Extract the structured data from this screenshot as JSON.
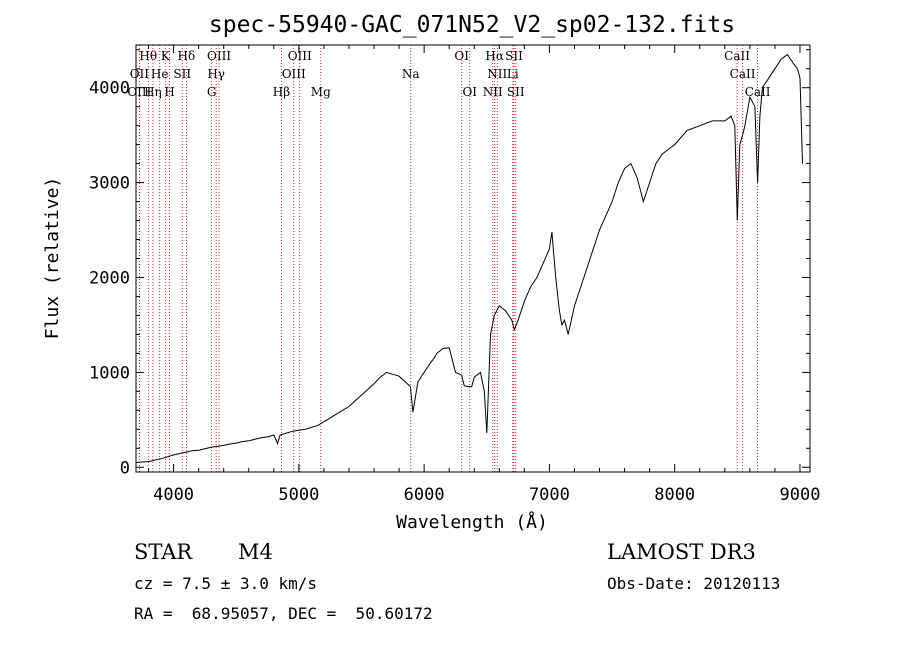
{
  "chart_data": {
    "type": "line",
    "title": "spec-55940-GAC_071N52_V2_sp02-132.fits",
    "xlabel": "Wavelength (Å)",
    "ylabel": "Flux (relative)",
    "xlim": [
      3700,
      9080
    ],
    "ylim": [
      -50,
      4450
    ],
    "xticks": [
      4000,
      5000,
      6000,
      7000,
      8000,
      9000
    ],
    "yticks": [
      0,
      1000,
      2000,
      3000,
      4000
    ],
    "xtick_labels": [
      "4000",
      "5000",
      "6000",
      "7000",
      "8000",
      "9000"
    ],
    "ytick_labels": [
      "0",
      "1000",
      "2000",
      "3000",
      "4000"
    ],
    "series": [
      {
        "name": "spectrum",
        "x": [
          3700,
          3750,
          3800,
          3850,
          3900,
          3950,
          4000,
          4050,
          4100,
          4150,
          4200,
          4250,
          4300,
          4350,
          4400,
          4450,
          4500,
          4550,
          4600,
          4650,
          4700,
          4750,
          4780,
          4800,
          4830,
          4850,
          4900,
          4950,
          5000,
          5050,
          5100,
          5150,
          5200,
          5250,
          5300,
          5350,
          5400,
          5450,
          5500,
          5550,
          5600,
          5650,
          5700,
          5750,
          5800,
          5850,
          5890,
          5910,
          5950,
          6000,
          6050,
          6080,
          6100,
          6150,
          6200,
          6250,
          6300,
          6320,
          6350,
          6380,
          6400,
          6450,
          6480,
          6500,
          6530,
          6560,
          6600,
          6650,
          6700,
          6720,
          6750,
          6800,
          6850,
          6900,
          6950,
          7000,
          7020,
          7050,
          7080,
          7100,
          7120,
          7150,
          7200,
          7300,
          7400,
          7500,
          7550,
          7600,
          7650,
          7700,
          7750,
          7800,
          7850,
          7900,
          7950,
          8000,
          8100,
          8200,
          8300,
          8400,
          8450,
          8480,
          8500,
          8520,
          8542,
          8560,
          8600,
          8640,
          8662,
          8680,
          8700,
          8750,
          8800,
          8850,
          8900,
          8950,
          8980,
          9000,
          9020
        ],
        "values": [
          50,
          55,
          60,
          75,
          90,
          110,
          130,
          145,
          160,
          175,
          180,
          195,
          210,
          220,
          230,
          245,
          255,
          270,
          280,
          295,
          310,
          320,
          330,
          340,
          250,
          340,
          360,
          380,
          390,
          400,
          420,
          440,
          480,
          520,
          560,
          600,
          640,
          700,
          760,
          820,
          880,
          950,
          1000,
          980,
          960,
          900,
          850,
          580,
          900,
          1000,
          1100,
          1150,
          1200,
          1250,
          1260,
          1000,
          970,
          860,
          850,
          850,
          950,
          1000,
          800,
          360,
          1400,
          1600,
          1700,
          1650,
          1550,
          1450,
          1550,
          1750,
          1900,
          2000,
          2150,
          2300,
          2480,
          2000,
          1650,
          1500,
          1550,
          1400,
          1700,
          2100,
          2500,
          2800,
          3000,
          3150,
          3200,
          3050,
          2800,
          3000,
          3200,
          3300,
          3350,
          3400,
          3550,
          3600,
          3650,
          3650,
          3700,
          3600,
          2600,
          3400,
          3500,
          3600,
          3900,
          3800,
          3000,
          3700,
          4000,
          4100,
          4200,
          4300,
          4350,
          4250,
          4200,
          4100,
          3200
        ]
      }
    ],
    "spectral_lines": [
      {
        "label": "Hθ",
        "wave": 3798,
        "row": 0
      },
      {
        "label": "K",
        "wave": 3934,
        "row": 0
      },
      {
        "label": "Hδ",
        "wave": 4102,
        "row": 0
      },
      {
        "label": "OIII",
        "wave": 4363,
        "row": 0
      },
      {
        "label": "OIII",
        "wave": 5007,
        "row": 0
      },
      {
        "label": "OI",
        "wave": 6300,
        "row": 0
      },
      {
        "label": "Hα",
        "wave": 6563,
        "row": 0
      },
      {
        "label": "SII",
        "wave": 6717,
        "row": 0
      },
      {
        "label": "CaII",
        "wave": 8498,
        "row": 0
      },
      {
        "label": "OII",
        "wave": 3727,
        "row": 1
      },
      {
        "label": "He",
        "wave": 3889,
        "row": 1
      },
      {
        "label": "SII",
        "wave": 4069,
        "row": 1
      },
      {
        "label": "Hγ",
        "wave": 4340,
        "row": 1
      },
      {
        "label": "OIII",
        "wave": 4959,
        "row": 1
      },
      {
        "label": "Na",
        "wave": 5893,
        "row": 1
      },
      {
        "label": "NII",
        "wave": 6584,
        "row": 1
      },
      {
        "label": "Li",
        "wave": 6708,
        "row": 1
      },
      {
        "label": "CaII",
        "wave": 8542,
        "row": 1
      },
      {
        "label": "OIII",
        "wave": 3727,
        "row": 2
      },
      {
        "label": "Hη",
        "wave": 3835,
        "row": 2
      },
      {
        "label": "H",
        "wave": 3968,
        "row": 2
      },
      {
        "label": "G",
        "wave": 4304,
        "row": 2
      },
      {
        "label": "Hβ",
        "wave": 4861,
        "row": 2
      },
      {
        "label": "Mg",
        "wave": 5175,
        "row": 2
      },
      {
        "label": "OI",
        "wave": 6364,
        "row": 2
      },
      {
        "label": "NII",
        "wave": 6548,
        "row": 2
      },
      {
        "label": "SII",
        "wave": 6731,
        "row": 2
      },
      {
        "label": "CaII",
        "wave": 8662,
        "row": 2
      }
    ]
  },
  "info": {
    "object_class": "STAR",
    "subclass": "M4",
    "survey": "LAMOST DR3",
    "cz": "cz = 7.5 ± 3.0 km/s",
    "obs_date": "Obs-Date: 20120113",
    "coords": "RA =  68.95057, DEC =  50.60172"
  }
}
